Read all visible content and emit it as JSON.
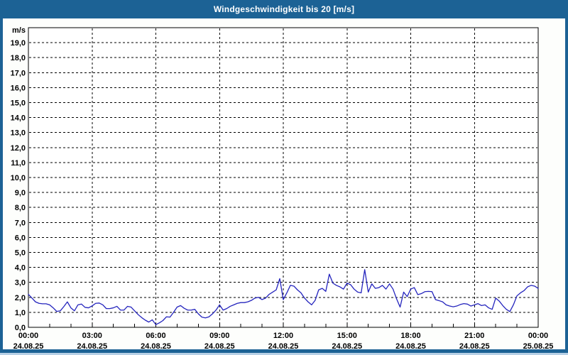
{
  "window": {
    "title": "Windgeschwindigkeit bis 20 [m/s]"
  },
  "colors": {
    "title_bar": "#1c6295",
    "window_border": "#1c6295",
    "outer_edge": "#b7d0e6",
    "content_background": "#fdfefc",
    "plot_background": "#ffffff",
    "plot_border": "#000000",
    "grid": "#000000",
    "label_text": "#000000",
    "title_text": "#ffffff",
    "line": "#2424bd"
  },
  "chart_data": {
    "type": "line",
    "title": "Windgeschwindigkeit bis 20 [m/s]",
    "ylabel": "m/s",
    "xlabel": "",
    "ylim": [
      0,
      20
    ],
    "y_tick_step": 1,
    "y_tick_labels": [
      "0,0",
      "1,0",
      "2,0",
      "3,0",
      "4,0",
      "5,0",
      "6,0",
      "7,0",
      "8,0",
      "9,0",
      "10,0",
      "11,0",
      "12,0",
      "13,0",
      "14,0",
      "15,0",
      "16,0",
      "17,0",
      "18,0",
      "19,0"
    ],
    "x_hours_span": 24,
    "x_major_tick_interval_hours": 3,
    "x_minor_tick_interval_hours": 1,
    "grid": {
      "horizontal": "dashed black line every 1 m/s",
      "vertical": "dashed black line every 3 hours"
    },
    "legend": "none",
    "x_ticks": [
      {
        "time": "00:00",
        "date": "24.08.25"
      },
      {
        "time": "03:00",
        "date": "24.08.25"
      },
      {
        "time": "06:00",
        "date": "24.08.25"
      },
      {
        "time": "09:00",
        "date": "24.08.25"
      },
      {
        "time": "12:00",
        "date": "24.08.25"
      },
      {
        "time": "15:00",
        "date": "24.08.25"
      },
      {
        "time": "18:00",
        "date": "24.08.25"
      },
      {
        "time": "21:00",
        "date": "24.08.25"
      },
      {
        "time": "00:00",
        "date": "25.08.25"
      }
    ],
    "series": [
      {
        "name": "Windgeschwindigkeit",
        "unit": "m/s",
        "color": "#2424bd",
        "start_time": "00:00",
        "interval_minutes": 10,
        "values": [
          2.2,
          1.95,
          1.7,
          1.6,
          1.57,
          1.57,
          1.5,
          1.3,
          1.06,
          1.1,
          1.38,
          1.7,
          1.3,
          1.1,
          1.5,
          1.55,
          1.33,
          1.3,
          1.43,
          1.6,
          1.62,
          1.5,
          1.25,
          1.25,
          1.3,
          1.4,
          1.15,
          1.15,
          1.4,
          1.35,
          1.1,
          0.85,
          0.65,
          0.48,
          0.35,
          0.5,
          0.18,
          0.3,
          0.45,
          0.7,
          0.68,
          1.0,
          1.35,
          1.45,
          1.27,
          1.15,
          1.15,
          1.2,
          0.9,
          0.68,
          0.63,
          0.7,
          0.9,
          1.15,
          1.5,
          1.15,
          1.25,
          1.4,
          1.5,
          1.6,
          1.65,
          1.65,
          1.7,
          1.8,
          1.95,
          2.0,
          1.85,
          1.95,
          2.2,
          2.35,
          2.5,
          3.25,
          1.85,
          2.3,
          2.8,
          2.75,
          2.5,
          2.3,
          1.95,
          1.7,
          1.5,
          1.8,
          2.5,
          2.6,
          2.4,
          3.55,
          2.95,
          2.8,
          2.7,
          2.55,
          2.95,
          2.85,
          2.55,
          2.35,
          2.3,
          3.85,
          2.35,
          2.9,
          2.6,
          2.65,
          2.8,
          2.55,
          2.9,
          2.55,
          1.9,
          1.35,
          2.35,
          2.05,
          2.55,
          2.65,
          2.18,
          2.25,
          2.38,
          2.4,
          2.38,
          1.85,
          1.78,
          1.7,
          1.5,
          1.42,
          1.37,
          1.42,
          1.52,
          1.58,
          1.55,
          1.42,
          1.5,
          1.58,
          1.45,
          1.5,
          1.3,
          1.2,
          1.95,
          1.75,
          1.45,
          1.2,
          1.05,
          1.5,
          2.1,
          2.3,
          2.45,
          2.7,
          2.8,
          2.75,
          2.6
        ]
      }
    ]
  }
}
